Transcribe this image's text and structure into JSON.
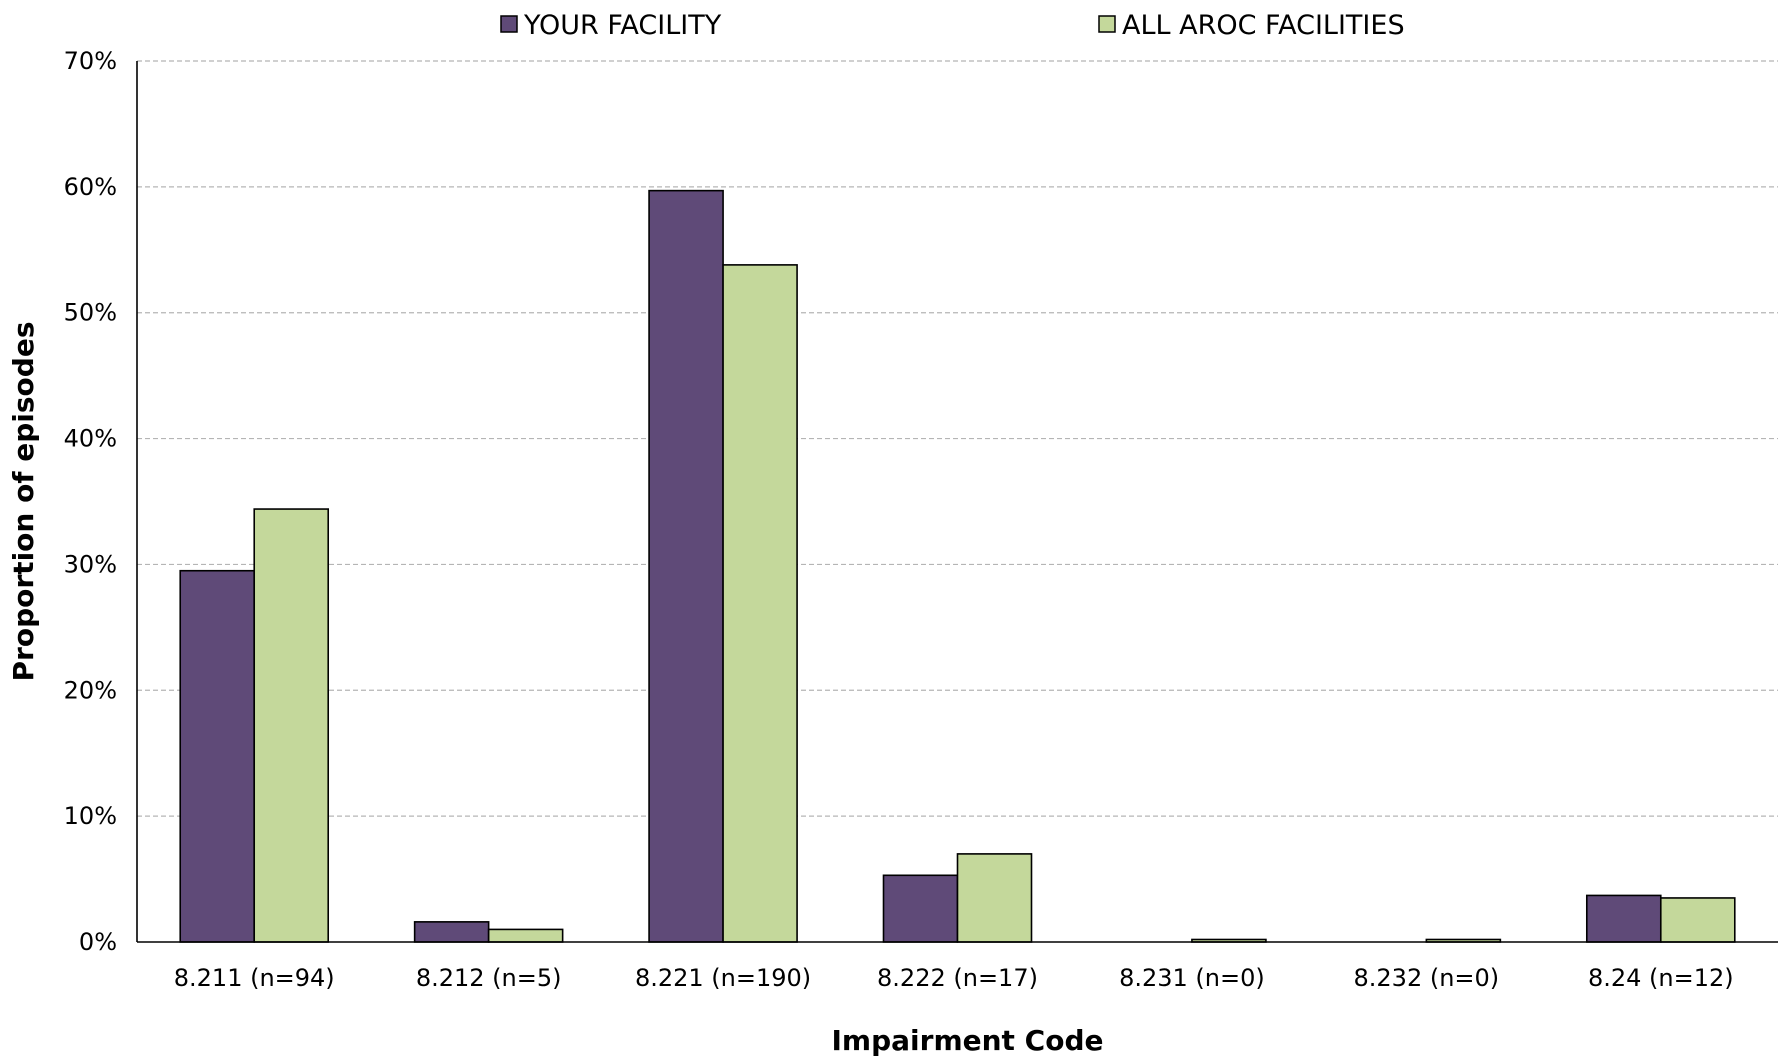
{
  "chart_data": {
    "type": "bar",
    "xlabel": "Impairment Code",
    "ylabel": "Proportion of episodes",
    "ylim": [
      0,
      70
    ],
    "yticks": [
      "0%",
      "10%",
      "20%",
      "30%",
      "40%",
      "50%",
      "60%",
      "70%"
    ],
    "grid": true,
    "legend_position": "top",
    "categories": [
      "8.211 (n=94)",
      "8.212 (n=5)",
      "8.221 (n=190)",
      "8.222 (n=17)",
      "8.231 (n=0)",
      "8.232 (n=0)",
      "8.24 (n=12)"
    ],
    "series": [
      {
        "name": "YOUR FACILITY",
        "color": "#5f4a78",
        "values": [
          29.5,
          1.6,
          59.7,
          5.3,
          0.0,
          0.0,
          3.7
        ]
      },
      {
        "name": "ALL AROC FACILITIES",
        "color": "#c4d89b",
        "values": [
          34.4,
          1.0,
          53.8,
          7.0,
          0.2,
          0.2,
          3.5
        ]
      }
    ]
  }
}
